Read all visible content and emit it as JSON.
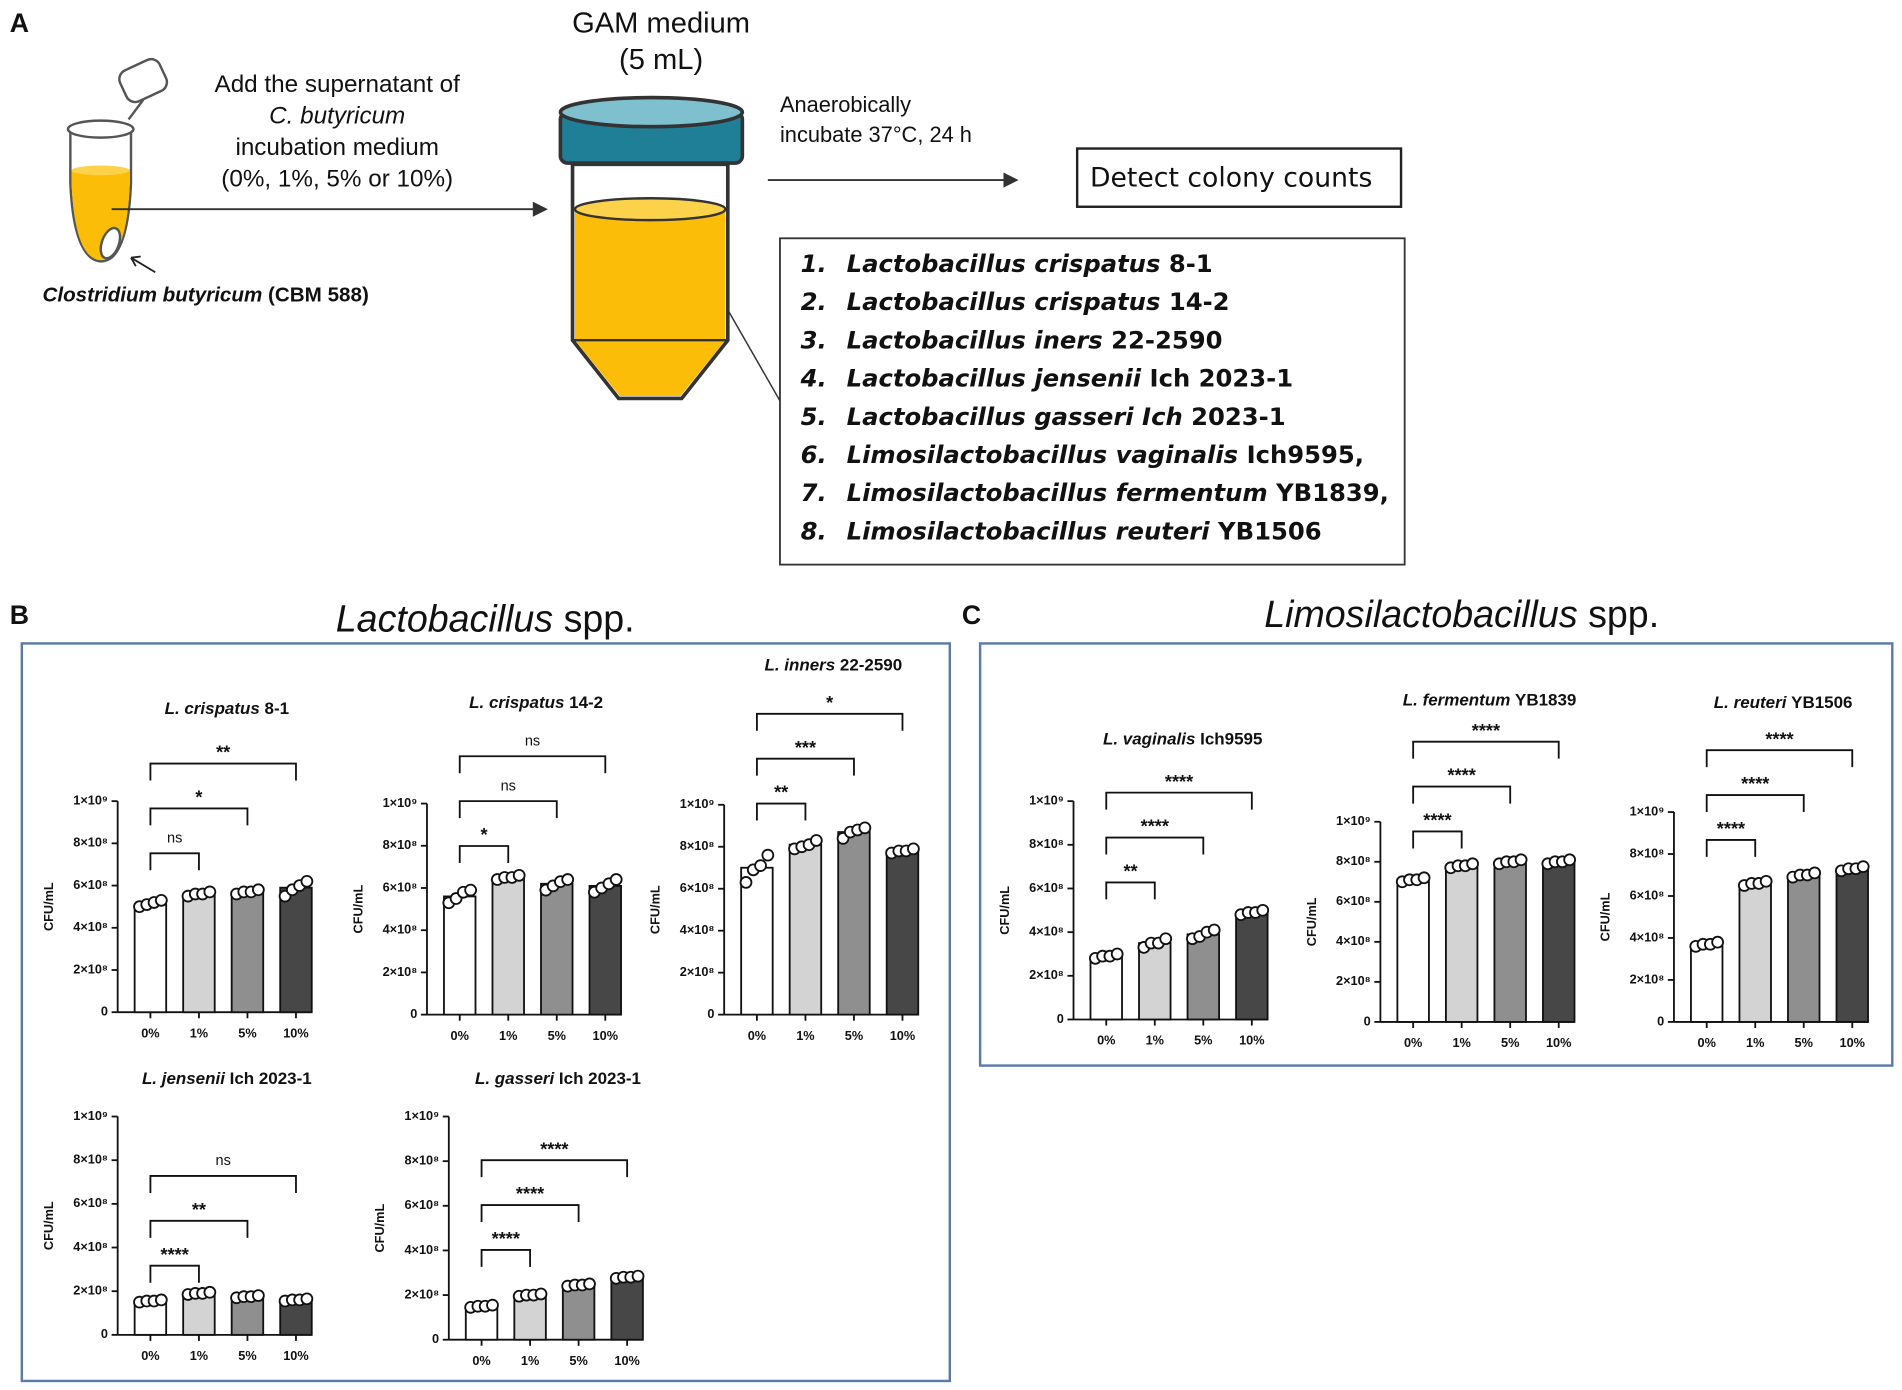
{
  "diagram": {
    "panel": "A",
    "supernatant": [
      "Add the supernatant of",
      "C. butyricum",
      "incubation medium",
      "(0%, 1%, 5% or 10%)"
    ],
    "source": {
      "species": "Clostridium butyricum",
      "strain": "(CBM 588)"
    },
    "medium": [
      "GAM medium",
      "(5 mL)"
    ],
    "incubation": [
      "Anaerobically",
      "incubate  37°C, 24 h"
    ],
    "detect": "Detect colony counts",
    "strains": [
      {
        "num": "1.",
        "species": "Lactobacillus crispatus",
        "strain": "8-1"
      },
      {
        "num": "2.",
        "species": "Lactobacillus crispatus",
        "strain": "14-2"
      },
      {
        "num": "3.",
        "species": "Lactobacillus iners",
        "strain": "22-2590"
      },
      {
        "num": "4.",
        "species": "Lactobacillus jensenii",
        "strain": "Ich 2023-1"
      },
      {
        "num": "5.",
        "species": "Lactobacillus gasseri Ich",
        "strain": "2023-1"
      },
      {
        "num": "6.",
        "species": "Limosilactobacillus vaginalis",
        "strain": "Ich9595,"
      },
      {
        "num": "7.",
        "species": "Limosilactobacillus fermentum",
        "strain": "YB1839,"
      },
      {
        "num": "8.",
        "species": "Limosilactobacillus reuteri",
        "strain": "YB1506"
      }
    ]
  },
  "panels": [
    {
      "letter": "B",
      "genus": "Lactobacillus",
      "suffix": "spp."
    },
    {
      "letter": "C",
      "genus": "Limosilactobacillus",
      "suffix": "spp."
    }
  ],
  "chart_data": [
    {
      "type": "bar",
      "title": {
        "species": "L. crispatus",
        "strain": "8-1"
      },
      "ylabel": "CFU/mL",
      "categories": [
        "0%",
        "1%",
        "5%",
        "10%"
      ],
      "values": [
        510000000.0,
        560000000.0,
        570000000.0,
        590000000.0
      ],
      "points": [
        [
          500000000.0,
          510000000.0,
          520000000.0,
          530000000.0
        ],
        [
          550000000.0,
          560000000.0,
          560000000.0,
          570000000.0
        ],
        [
          560000000.0,
          570000000.0,
          570000000.0,
          580000000.0
        ],
        [
          550000000.0,
          580000000.0,
          600000000.0,
          620000000.0
        ]
      ],
      "colors": [
        "#ffffff",
        "#d3d3d3",
        "#8f8f8f",
        "#474747"
      ],
      "comparisons": [
        "ns",
        "*",
        "**"
      ],
      "ylim": [
        0,
        1000000000.0
      ],
      "yticks": [
        0,
        {
          "value": 200000000.0,
          "label": "2×10⁸"
        },
        {
          "value": 400000000.0,
          "label": "4×10⁸"
        },
        {
          "value": 600000000.0,
          "label": "6×10⁸"
        },
        {
          "value": 800000000.0,
          "label": "8×10⁸"
        },
        {
          "value": 1000000000.0,
          "label": "1×10⁹"
        }
      ]
    },
    {
      "type": "bar",
      "title": {
        "species": "L. crispatus",
        "strain": "14-2"
      },
      "ylabel": "CFU/mL",
      "categories": [
        "0%",
        "1%",
        "5%",
        "10%"
      ],
      "values": [
        560000000.0,
        650000000.0,
        620000000.0,
        610000000.0
      ],
      "points": [
        [
          530000000.0,
          550000000.0,
          580000000.0,
          590000000.0
        ],
        [
          640000000.0,
          650000000.0,
          650000000.0,
          660000000.0
        ],
        [
          590000000.0,
          610000000.0,
          630000000.0,
          640000000.0
        ],
        [
          580000000.0,
          600000000.0,
          620000000.0,
          640000000.0
        ]
      ],
      "colors": [
        "#ffffff",
        "#d3d3d3",
        "#8f8f8f",
        "#474747"
      ],
      "comparisons": [
        "*",
        "ns",
        "ns"
      ],
      "ylim": [
        0,
        1000000000.0
      ],
      "yticks": [
        0,
        {
          "value": 200000000.0,
          "label": "2×10⁸"
        },
        {
          "value": 400000000.0,
          "label": "4×10⁸"
        },
        {
          "value": 600000000.0,
          "label": "6×10⁸"
        },
        {
          "value": 800000000.0,
          "label": "8×10⁸"
        },
        {
          "value": 1000000000.0,
          "label": "1×10⁹"
        }
      ]
    },
    {
      "type": "bar",
      "title": {
        "species": "L. inners",
        "strain": "22-2590"
      },
      "ylabel": "CFU/mL",
      "categories": [
        "0%",
        "1%",
        "5%",
        "10%"
      ],
      "values": [
        700000000.0,
        810000000.0,
        870000000.0,
        780000000.0
      ],
      "points": [
        [
          630000000.0,
          690000000.0,
          710000000.0,
          760000000.0
        ],
        [
          790000000.0,
          800000000.0,
          810000000.0,
          830000000.0
        ],
        [
          840000000.0,
          870000000.0,
          880000000.0,
          890000000.0
        ],
        [
          770000000.0,
          780000000.0,
          780000000.0,
          790000000.0
        ]
      ],
      "colors": [
        "#ffffff",
        "#d3d3d3",
        "#8f8f8f",
        "#474747"
      ],
      "comparisons": [
        "**",
        "***",
        "*"
      ],
      "ylim": [
        0,
        1000000000.0
      ],
      "yticks": [
        0,
        {
          "value": 200000000.0,
          "label": "2×10⁸"
        },
        {
          "value": 400000000.0,
          "label": "4×10⁸"
        },
        {
          "value": 600000000.0,
          "label": "6×10⁸"
        },
        {
          "value": 800000000.0,
          "label": "8×10⁸"
        },
        {
          "value": 1000000000.0,
          "label": "1×10⁹"
        }
      ]
    },
    {
      "type": "bar",
      "title": {
        "species": "L. jensenii",
        "strain": "Ich 2023-1"
      },
      "ylabel": "CFU/mL",
      "categories": [
        "0%",
        "1%",
        "5%",
        "10%"
      ],
      "values": [
        155000000.0,
        190000000.0,
        175000000.0,
        160000000.0
      ],
      "points": [
        [
          150000000.0,
          155000000.0,
          155000000.0,
          160000000.0
        ],
        [
          185000000.0,
          190000000.0,
          190000000.0,
          195000000.0
        ],
        [
          170000000.0,
          175000000.0,
          175000000.0,
          180000000.0
        ],
        [
          155000000.0,
          160000000.0,
          160000000.0,
          165000000.0
        ]
      ],
      "colors": [
        "#ffffff",
        "#d3d3d3",
        "#8f8f8f",
        "#474747"
      ],
      "comparisons": [
        "****",
        "**",
        "ns"
      ],
      "ylim": [
        0,
        1000000000.0
      ],
      "yticks": [
        0,
        {
          "value": 200000000.0,
          "label": "2×10⁸"
        },
        {
          "value": 400000000.0,
          "label": "4×10⁸"
        },
        {
          "value": 600000000.0,
          "label": "6×10⁸"
        },
        {
          "value": 800000000.0,
          "label": "8×10⁸"
        },
        {
          "value": 1000000000.0,
          "label": "1×10⁹"
        }
      ]
    },
    {
      "type": "bar",
      "title": {
        "species": "L. gasseri",
        "strain": "Ich 2023-1"
      },
      "ylabel": "CFU/mL",
      "categories": [
        "0%",
        "1%",
        "5%",
        "10%"
      ],
      "values": [
        150000000.0,
        200000000.0,
        245000000.0,
        280000000.0
      ],
      "points": [
        [
          145000000.0,
          150000000.0,
          150000000.0,
          155000000.0
        ],
        [
          195000000.0,
          200000000.0,
          200000000.0,
          205000000.0
        ],
        [
          240000000.0,
          245000000.0,
          245000000.0,
          250000000.0
        ],
        [
          275000000.0,
          280000000.0,
          280000000.0,
          285000000.0
        ]
      ],
      "colors": [
        "#ffffff",
        "#d3d3d3",
        "#8f8f8f",
        "#474747"
      ],
      "comparisons": [
        "****",
        "****",
        "****"
      ],
      "ylim": [
        0,
        1000000000.0
      ],
      "yticks": [
        0,
        {
          "value": 200000000.0,
          "label": "2×10⁸"
        },
        {
          "value": 400000000.0,
          "label": "4×10⁸"
        },
        {
          "value": 600000000.0,
          "label": "6×10⁸"
        },
        {
          "value": 800000000.0,
          "label": "8×10⁸"
        },
        {
          "value": 1000000000.0,
          "label": "1×10⁹"
        }
      ]
    },
    {
      "type": "bar",
      "title": {
        "species": "L. vaginalis",
        "strain": "Ich9595"
      },
      "ylabel": "CFU/mL",
      "categories": [
        "0%",
        "1%",
        "5%",
        "10%"
      ],
      "values": [
        290000000.0,
        350000000.0,
        390000000.0,
        490000000.0
      ],
      "points": [
        [
          280000000.0,
          290000000.0,
          290000000.0,
          300000000.0
        ],
        [
          330000000.0,
          350000000.0,
          350000000.0,
          370000000.0
        ],
        [
          370000000.0,
          380000000.0,
          400000000.0,
          410000000.0
        ],
        [
          480000000.0,
          490000000.0,
          490000000.0,
          500000000.0
        ]
      ],
      "colors": [
        "#ffffff",
        "#d3d3d3",
        "#8f8f8f",
        "#474747"
      ],
      "comparisons": [
        "**",
        "****",
        "****"
      ],
      "ylim": [
        0,
        1000000000.0
      ],
      "yticks": [
        0,
        {
          "value": 200000000.0,
          "label": "2×10⁸"
        },
        {
          "value": 400000000.0,
          "label": "4×10⁸"
        },
        {
          "value": 600000000.0,
          "label": "6×10⁸"
        },
        {
          "value": 800000000.0,
          "label": "8×10⁸"
        },
        {
          "value": 1000000000.0,
          "label": "1×10⁹"
        }
      ]
    },
    {
      "type": "bar",
      "title": {
        "species": "L. fermentum",
        "strain": "YB1839"
      },
      "ylabel": "CFU/mL",
      "categories": [
        "0%",
        "1%",
        "5%",
        "10%"
      ],
      "values": [
        710000000.0,
        780000000.0,
        800000000.0,
        800000000.0
      ],
      "points": [
        [
          700000000.0,
          710000000.0,
          710000000.0,
          720000000.0
        ],
        [
          770000000.0,
          780000000.0,
          780000000.0,
          790000000.0
        ],
        [
          790000000.0,
          800000000.0,
          800000000.0,
          810000000.0
        ],
        [
          790000000.0,
          800000000.0,
          800000000.0,
          810000000.0
        ]
      ],
      "colors": [
        "#ffffff",
        "#d3d3d3",
        "#8f8f8f",
        "#474747"
      ],
      "comparisons": [
        "****",
        "****",
        "****"
      ],
      "ylim": [
        0,
        1000000000.0
      ],
      "yticks": [
        0,
        {
          "value": 200000000.0,
          "label": "2×10⁸"
        },
        {
          "value": 400000000.0,
          "label": "4×10⁸"
        },
        {
          "value": 600000000.0,
          "label": "6×10⁸"
        },
        {
          "value": 800000000.0,
          "label": "8×10⁸"
        },
        {
          "value": 1000000000.0,
          "label": "1×10⁹"
        }
      ]
    },
    {
      "type": "bar",
      "title": {
        "species": "L. reuteri",
        "strain": "YB1506"
      },
      "ylabel": "CFU/mL",
      "categories": [
        "0%",
        "1%",
        "5%",
        "10%"
      ],
      "values": [
        370000000.0,
        660000000.0,
        700000000.0,
        730000000.0
      ],
      "points": [
        [
          360000000.0,
          370000000.0,
          370000000.0,
          380000000.0
        ],
        [
          650000000.0,
          660000000.0,
          660000000.0,
          670000000.0
        ],
        [
          690000000.0,
          700000000.0,
          700000000.0,
          710000000.0
        ],
        [
          720000000.0,
          730000000.0,
          730000000.0,
          740000000.0
        ]
      ],
      "colors": [
        "#ffffff",
        "#d3d3d3",
        "#8f8f8f",
        "#474747"
      ],
      "comparisons": [
        "****",
        "****",
        "****"
      ],
      "ylim": [
        0,
        1000000000.0
      ],
      "yticks": [
        0,
        {
          "value": 200000000.0,
          "label": "2×10⁸"
        },
        {
          "value": 400000000.0,
          "label": "4×10⁸"
        },
        {
          "value": 600000000.0,
          "label": "6×10⁸"
        },
        {
          "value": 800000000.0,
          "label": "8×10⁸"
        },
        {
          "value": 1000000000.0,
          "label": "1×10⁹"
        }
      ]
    }
  ]
}
